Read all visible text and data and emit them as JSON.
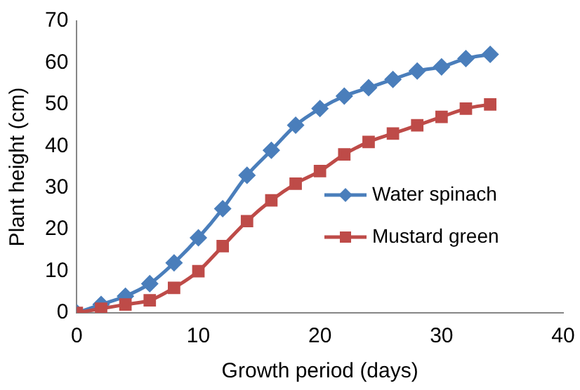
{
  "chart_data": {
    "type": "line",
    "xlabel": "Growth period (days)",
    "ylabel": "Plant height (cm)",
    "x": [
      0,
      2,
      4,
      6,
      8,
      10,
      12,
      14,
      16,
      18,
      20,
      22,
      24,
      26,
      28,
      30,
      32,
      34
    ],
    "series": [
      {
        "name": "Water spinach",
        "color": "#4a7ebb",
        "marker": "diamond",
        "values": [
          0,
          2,
          4,
          7,
          12,
          18,
          25,
          33,
          39,
          45,
          49,
          52,
          54,
          56,
          58,
          59,
          61,
          62
        ]
      },
      {
        "name": "Mustard green",
        "color": "#be4b48",
        "marker": "square",
        "values": [
          0,
          1,
          2,
          3,
          6,
          10,
          16,
          22,
          27,
          31,
          34,
          38,
          41,
          43,
          45,
          47,
          49,
          50
        ]
      }
    ],
    "xlim": [
      0,
      40
    ],
    "xticks": [
      0,
      10,
      20,
      30,
      40
    ],
    "ylim": [
      0,
      70
    ],
    "yticks": [
      0,
      10,
      20,
      30,
      40,
      50,
      60,
      70
    ],
    "grid": false,
    "legend": "right"
  }
}
